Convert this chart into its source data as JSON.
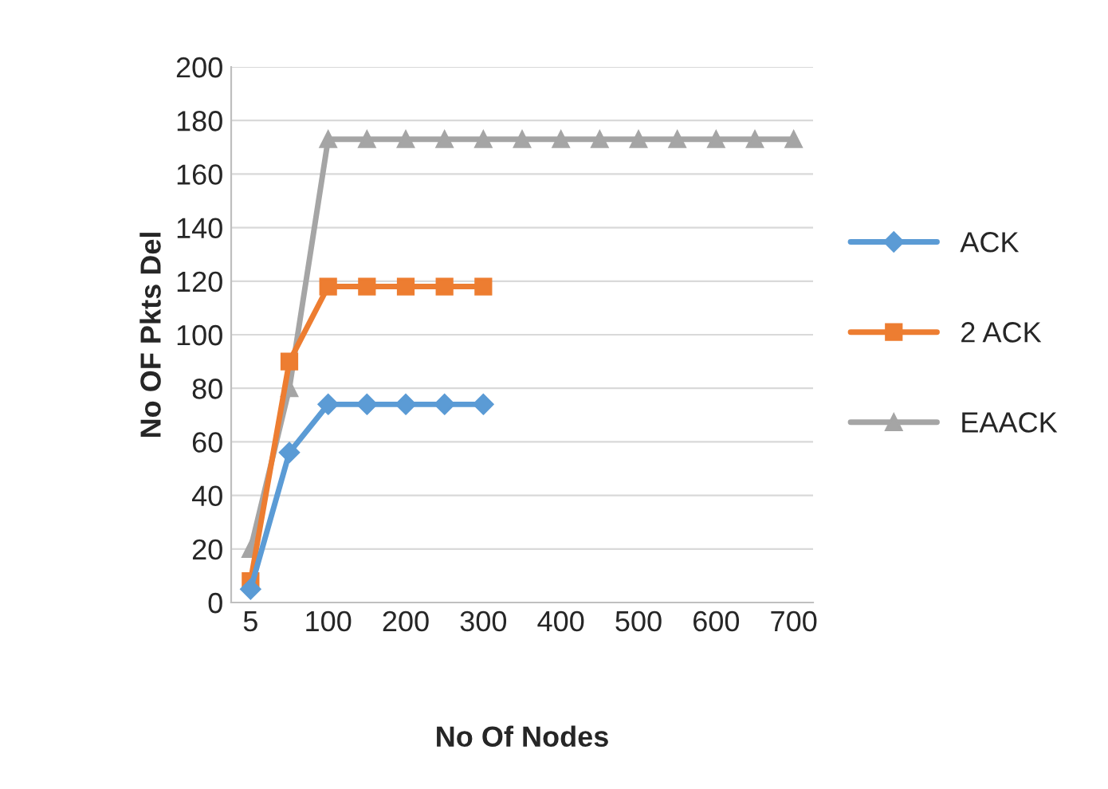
{
  "chart_data": {
    "type": "line",
    "xlabel": "No Of Nodes",
    "ylabel": "No OF Pkts Del",
    "categories": [
      "5",
      null,
      "100",
      null,
      "200",
      null,
      "300",
      null,
      "400",
      null,
      "500",
      null,
      "600",
      null,
      "700"
    ],
    "series": [
      {
        "name": "ACK",
        "color": "#5b9bd5",
        "marker": "diamond",
        "values": [
          5,
          56,
          74,
          74,
          74,
          74,
          74,
          null,
          null,
          null,
          null,
          null,
          null,
          null,
          null
        ]
      },
      {
        "name": "2 ACK",
        "color": "#ed7d31",
        "marker": "square",
        "values": [
          8,
          90,
          118,
          118,
          118,
          118,
          118,
          null,
          null,
          null,
          null,
          null,
          null,
          null,
          null
        ]
      },
      {
        "name": "EAACK",
        "color": "#a5a5a5",
        "marker": "triangle",
        "values": [
          20,
          80,
          173,
          173,
          173,
          173,
          173,
          173,
          173,
          173,
          173,
          173,
          173,
          173,
          173
        ]
      }
    ],
    "ylim": [
      0,
      200
    ],
    "yticks": [
      0,
      20,
      40,
      60,
      80,
      100,
      120,
      140,
      160,
      180,
      200
    ],
    "grid": "y",
    "legend": "right",
    "line_style": "solid"
  }
}
